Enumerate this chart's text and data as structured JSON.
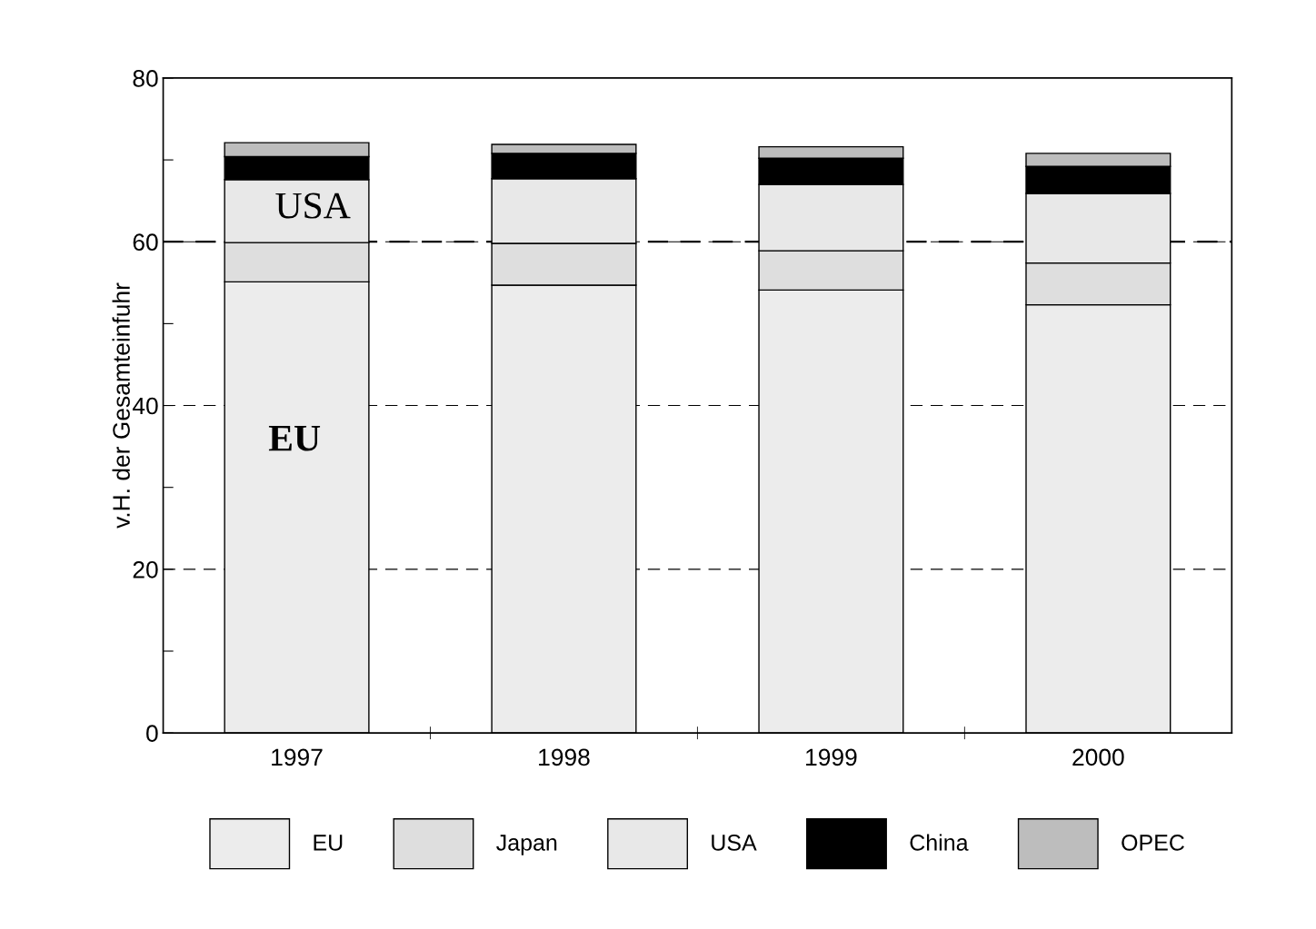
{
  "chart_data": {
    "type": "bar",
    "stacked": true,
    "ylabel": "v.H. der Gesamteinfuhr",
    "categories": [
      "1997",
      "1998",
      "1999",
      "2000"
    ],
    "series": [
      {
        "name": "EU",
        "color": "#ececec",
        "values": [
          55.1,
          54.7,
          54.1,
          52.3
        ]
      },
      {
        "name": "Japan",
        "color": "#dedede",
        "values": [
          4.8,
          5.1,
          4.8,
          5.1
        ]
      },
      {
        "name": "USA",
        "color": "#e8e8e8",
        "values": [
          7.7,
          7.9,
          8.1,
          8.5
        ]
      },
      {
        "name": "China",
        "color": "#000000",
        "values": [
          2.8,
          3.1,
          3.2,
          3.3
        ]
      },
      {
        "name": "OPEC",
        "color": "#bdbdbd",
        "values": [
          1.7,
          1.1,
          1.4,
          1.6
        ]
      }
    ],
    "ylim": [
      0,
      80
    ],
    "yticks": [
      0,
      {
        "value": 10,
        "label": null
      },
      20,
      {
        "value": 30,
        "label": null
      },
      40,
      {
        "value": 50,
        "label": null
      },
      60,
      {
        "value": 70,
        "label": null
      },
      80
    ],
    "grid": "y",
    "legend": "bottom",
    "ref_lines": [
      {
        "axis": "y",
        "value": 60,
        "label": null,
        "color": "#000000",
        "line_style": "dashed"
      }
    ],
    "annotations": [
      "USA",
      "EU"
    ]
  }
}
